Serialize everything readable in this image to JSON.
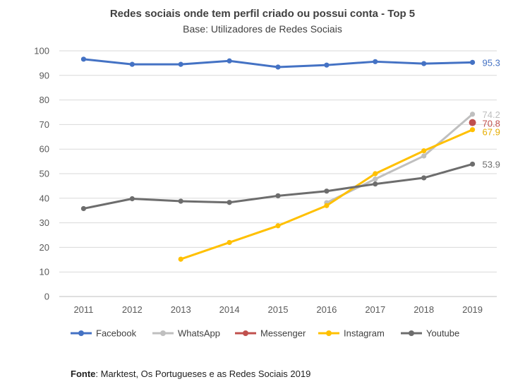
{
  "chart_data": {
    "type": "line",
    "title": "Redes sociais onde tem perfil criado ou possui conta - Top 5",
    "subtitle": "Base: Utilizadores de Redes Sociais",
    "xlabel": "",
    "ylabel": "",
    "ylim": [
      0,
      100
    ],
    "yticks": [
      0,
      10,
      20,
      30,
      40,
      50,
      60,
      70,
      80,
      90,
      100
    ],
    "categories": [
      "2011",
      "2012",
      "2013",
      "2014",
      "2015",
      "2016",
      "2017",
      "2018",
      "2019"
    ],
    "legend_position": "bottom",
    "grid": true,
    "series": [
      {
        "name": "Facebook",
        "color": "#4472C4",
        "values": [
          96.6,
          94.5,
          94.5,
          95.9,
          93.4,
          94.2,
          95.6,
          94.8,
          95.3
        ],
        "end_label": "95.3"
      },
      {
        "name": "WhatsApp",
        "color": "#BFBFBF",
        "values": [
          null,
          null,
          null,
          null,
          null,
          38.2,
          47.8,
          57.2,
          74.2
        ],
        "end_label": "74.2"
      },
      {
        "name": "Messenger",
        "color": "#C0504D",
        "values": [
          null,
          null,
          null,
          null,
          null,
          null,
          null,
          null,
          70.8
        ],
        "end_label": "70.8"
      },
      {
        "name": "Instagram",
        "color": "#FFC000",
        "values": [
          null,
          null,
          15.2,
          22.0,
          28.8,
          37.0,
          50.0,
          59.3,
          67.9
        ],
        "end_label": "67.9"
      },
      {
        "name": "Youtube",
        "color": "#6D6D6D",
        "values": [
          35.8,
          39.8,
          38.8,
          38.3,
          41.0,
          42.9,
          45.8,
          48.3,
          53.9
        ],
        "end_label": "53.9"
      }
    ]
  },
  "source": {
    "label": "Fonte",
    "text": ": Marktest, Os Portugueses e as Redes Sociais 2019"
  }
}
